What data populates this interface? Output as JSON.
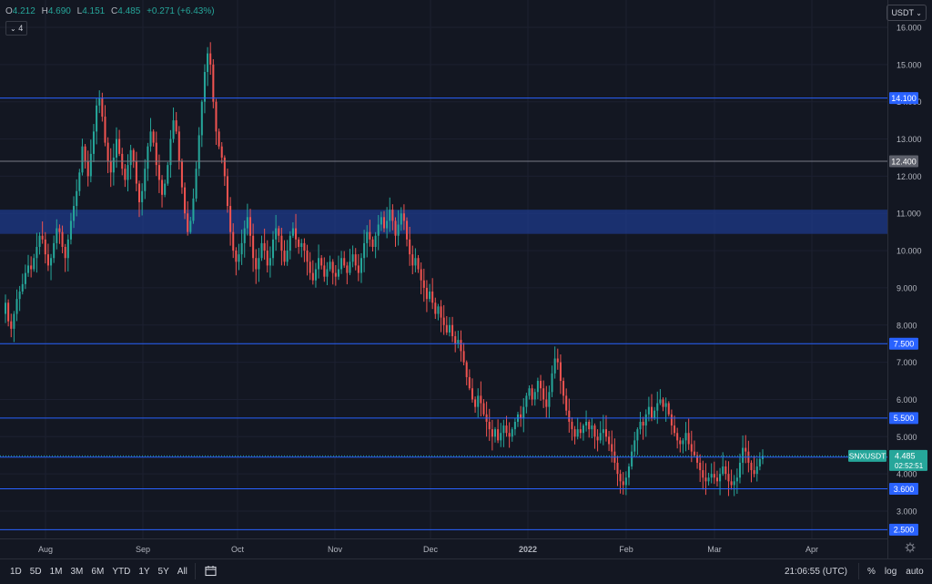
{
  "header": {
    "open_label": "O",
    "open": "4.212",
    "high_label": "H",
    "high": "4.690",
    "low_label": "L",
    "low": "4.151",
    "close_label": "C",
    "close": "4.485",
    "change": "+0.271 (+6.43%)",
    "indicator_toggle": "4"
  },
  "currency_button": "USDT",
  "footer": {
    "ranges": [
      "1D",
      "5D",
      "1M",
      "3M",
      "6M",
      "YTD",
      "1Y",
      "5Y",
      "All"
    ],
    "time": "21:06:55 (UTC)",
    "percent_label": "%",
    "log_label": "log",
    "auto_label": "auto"
  },
  "colors": {
    "background": "#131722",
    "up": "#26a69a",
    "down": "#ef5350",
    "level_line": "#2962ff",
    "zone": "#1e3a8a",
    "neutral_line": "#787b86"
  },
  "chart_data": {
    "type": "candlestick",
    "symbol": "SNXUSDT",
    "last_price": "4.485",
    "countdown": "02:52:51",
    "y_ticks": [
      "16.000",
      "15.000",
      "14.000",
      "13.000",
      "12.000",
      "11.000",
      "10.000",
      "9.000",
      "8.000",
      "7.000",
      "6.000",
      "5.000",
      "4.000",
      "3.000"
    ],
    "x_ticks": [
      "Aug",
      "Sep",
      "Oct",
      "Nov",
      "Dec",
      "2022",
      "Feb",
      "Mar",
      "Apr"
    ],
    "ylim": [
      2.3,
      16.5
    ],
    "levels": [
      {
        "label": "14.100",
        "value": 14.1,
        "kind": "blue"
      },
      {
        "label": "12.400",
        "value": 12.4,
        "kind": "gray"
      },
      {
        "label": "7.500",
        "value": 7.5,
        "kind": "blue"
      },
      {
        "label": "5.500",
        "value": 5.5,
        "kind": "blue"
      },
      {
        "label": "4.450",
        "value": 4.45,
        "kind": "blue"
      },
      {
        "label": "3.600",
        "value": 3.6,
        "kind": "blue"
      },
      {
        "label": "2.500",
        "value": 2.5,
        "kind": "blue"
      }
    ],
    "zone": {
      "from": 10.45,
      "to": 11.1
    },
    "candles_close": [
      8.6,
      8.1,
      7.9,
      8.3,
      8.7,
      8.9,
      9.1,
      9.4,
      9.6,
      9.5,
      9.8,
      10.1,
      10.4,
      10.3,
      9.9,
      9.6,
      9.8,
      10.2,
      10.6,
      10.5,
      10.1,
      9.8,
      10.3,
      10.8,
      11.2,
      11.6,
      12.1,
      12.8,
      12.4,
      12.0,
      12.6,
      13.2,
      13.9,
      14.1,
      13.6,
      12.9,
      12.4,
      12.1,
      12.5,
      13.0,
      12.6,
      12.2,
      11.9,
      12.3,
      12.7,
      12.4,
      11.8,
      11.3,
      11.6,
      12.2,
      12.8,
      13.2,
      12.9,
      12.3,
      11.9,
      11.5,
      11.8,
      12.3,
      13.0,
      13.5,
      13.2,
      12.4,
      11.7,
      11.0,
      10.5,
      10.8,
      11.4,
      12.2,
      13.1,
      14.0,
      14.8,
      15.3,
      15.0,
      14.0,
      13.2,
      12.8,
      12.5,
      12.0,
      11.2,
      10.5,
      10.0,
      9.7,
      9.9,
      10.2,
      10.6,
      10.9,
      10.4,
      9.8,
      9.5,
      9.8,
      10.2,
      10.0,
      9.6,
      9.8,
      10.3,
      10.6,
      10.4,
      10.0,
      9.7,
      10.0,
      10.4,
      10.6,
      10.3,
      10.1,
      10.2,
      10.0,
      9.7,
      9.4,
      9.2,
      9.5,
      9.8,
      9.6,
      9.3,
      9.5,
      9.7,
      9.4,
      9.3,
      9.5,
      9.8,
      9.6,
      9.4,
      9.7,
      9.9,
      9.6,
      9.4,
      9.8,
      10.2,
      10.5,
      10.3,
      10.1,
      10.4,
      10.7,
      10.9,
      10.6,
      10.8,
      11.1,
      10.8,
      10.4,
      10.7,
      11.0,
      10.8,
      10.3,
      9.9,
      9.6,
      9.8,
      9.5,
      9.2,
      9.0,
      8.7,
      8.9,
      8.6,
      8.3,
      8.5,
      8.2,
      8.0,
      7.8,
      8.0,
      7.7,
      7.5,
      7.6,
      7.3,
      7.0,
      6.6,
      6.3,
      6.0,
      5.8,
      6.1,
      5.9,
      5.6,
      5.4,
      5.2,
      5.0,
      5.2,
      4.9,
      5.1,
      5.3,
      5.1,
      5.0,
      5.2,
      5.4,
      5.6,
      5.5,
      5.8,
      6.1,
      6.3,
      6.0,
      6.2,
      6.5,
      6.3,
      6.0,
      5.8,
      6.2,
      6.7,
      7.1,
      7.0,
      6.5,
      6.1,
      5.7,
      5.4,
      5.2,
      5.0,
      5.2,
      5.1,
      5.3,
      5.4,
      5.2,
      5.3,
      5.0,
      4.9,
      5.1,
      5.2,
      5.0,
      4.8,
      4.6,
      4.3,
      4.0,
      3.8,
      3.7,
      3.9,
      4.2,
      4.6,
      4.9,
      5.2,
      5.4,
      5.3,
      5.6,
      5.8,
      5.5,
      5.7,
      5.9,
      6.0,
      5.8,
      5.9,
      5.6,
      5.3,
      5.1,
      4.9,
      4.8,
      4.9,
      5.1,
      4.8,
      4.6,
      4.5,
      4.3,
      4.1,
      3.9,
      3.8,
      3.9,
      4.0,
      3.9,
      3.8,
      4.0,
      4.2,
      4.0,
      3.8,
      3.7,
      3.8,
      3.9,
      4.3,
      4.7,
      4.6,
      4.3,
      4.1,
      4.0,
      4.2,
      4.4,
      4.485
    ]
  }
}
